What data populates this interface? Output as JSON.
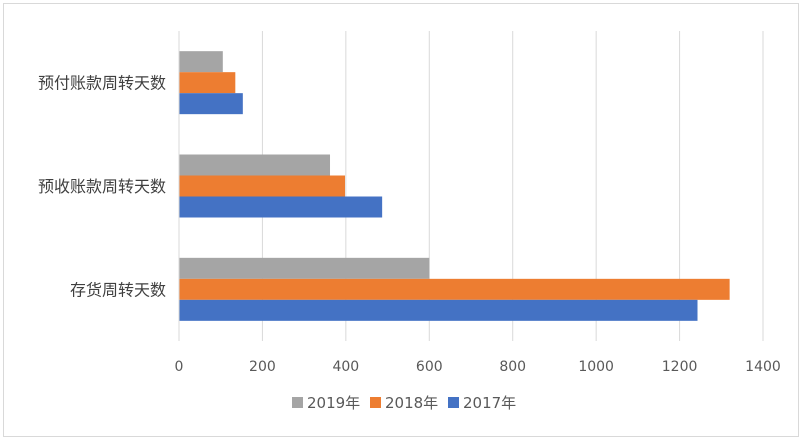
{
  "chart_data": {
    "type": "bar",
    "orientation": "horizontal",
    "categories": [
      "预付账款周转天数",
      "预收账款周转天数",
      "存货周转天数"
    ],
    "series": [
      {
        "name": "2019年",
        "color": "#a5a5a5",
        "values": [
          105,
          362,
          600
        ]
      },
      {
        "name": "2018年",
        "color": "#ed7d31",
        "values": [
          135,
          398,
          1320
        ]
      },
      {
        "name": "2017年",
        "color": "#4472c4",
        "values": [
          153,
          487,
          1243
        ]
      }
    ],
    "xlim": [
      0,
      1400
    ],
    "xticks": [
      "0",
      "200",
      "400",
      "600",
      "800",
      "1000",
      "1200",
      "1400"
    ],
    "grid": true,
    "legend_position": "bottom"
  }
}
